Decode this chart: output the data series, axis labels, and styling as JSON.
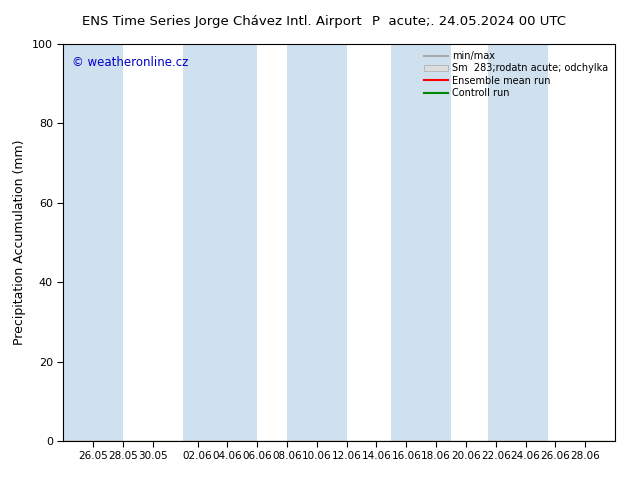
{
  "title_left": "ENS Time Series Jorge Chávez Intl. Airport",
  "title_right": "P  acute;. 24.05.2024 00 UTC",
  "ylabel": "Precipitation Accumulation (mm)",
  "ylim": [
    0,
    100
  ],
  "yticks": [
    0,
    20,
    40,
    60,
    80,
    100
  ],
  "x_labels": [
    "26.05",
    "28.05",
    "30.05",
    "02.06",
    "04.06",
    "06.06",
    "08.06",
    "10.06",
    "12.06",
    "14.06",
    "16.06",
    "18.06",
    "20.06",
    "22.06",
    "24.06",
    "26.06",
    "28.06"
  ],
  "x_tick_vals": [
    2,
    4,
    6,
    9,
    11,
    13,
    15,
    17,
    19,
    21,
    23,
    25,
    27,
    29,
    31,
    33,
    35
  ],
  "watermark": "© weatheronline.cz",
  "legend_entries": [
    "min/max",
    "Sm  283;rodatn acute; odchylka",
    "Ensemble mean run",
    "Controll run"
  ],
  "band_color": "#cfe0ef",
  "background_color": "#ffffff",
  "line_color_ensemble": "#ff0000",
  "line_color_control": "#008800",
  "line_color_minmax": "#aaaaaa",
  "line_color_spread": "#cccccc",
  "xlim": [
    0,
    37
  ],
  "total_days": 37,
  "band_positions": [
    [
      0,
      4
    ],
    [
      8,
      13
    ],
    [
      15,
      19
    ],
    [
      22,
      26
    ],
    [
      28.5,
      32.5
    ]
  ]
}
